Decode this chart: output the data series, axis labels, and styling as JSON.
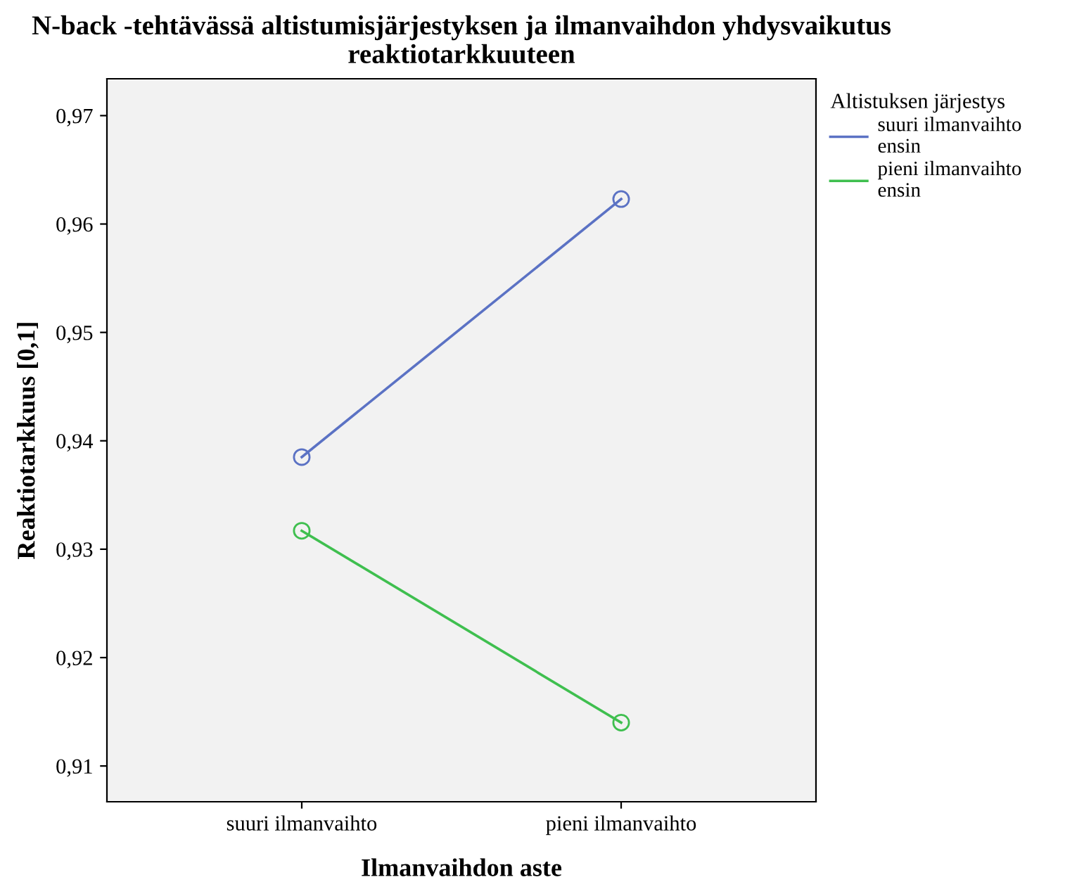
{
  "chart_data": {
    "type": "line",
    "title": "N-back -tehtävässä altistumisjärjestyksen ja ilmanvaihdon yhdysvaikutus reaktiotarkkuuteen",
    "xlabel": "Ilmanvaihdon aste",
    "ylabel": "Reaktiotarkkuus [0,1]",
    "legend_title": "Altistuksen järjestys",
    "categories": [
      "suuri ilmanvaihto",
      "pieni ilmanvaihto"
    ],
    "series": [
      {
        "name": "suuri ilmanvaihto\nensin",
        "color": "#5b72c4",
        "values": [
          0.9385,
          0.9623
        ]
      },
      {
        "name": "pieni ilmanvaihto\nensin",
        "color": "#3fbf4f",
        "values": [
          0.9317,
          0.914
        ]
      }
    ],
    "ylim": [
      0.9067,
      0.9734
    ],
    "yticks": [
      {
        "value": 0.91,
        "label": "0,91"
      },
      {
        "value": 0.92,
        "label": "0,92"
      },
      {
        "value": 0.93,
        "label": "0,93"
      },
      {
        "value": 0.94,
        "label": "0,94"
      },
      {
        "value": 0.95,
        "label": "0,95"
      },
      {
        "value": 0.96,
        "label": "0,96"
      },
      {
        "value": 0.97,
        "label": "0,97"
      }
    ],
    "marker": "circle",
    "line_style": "solid",
    "grid": false,
    "legend": "top right"
  }
}
